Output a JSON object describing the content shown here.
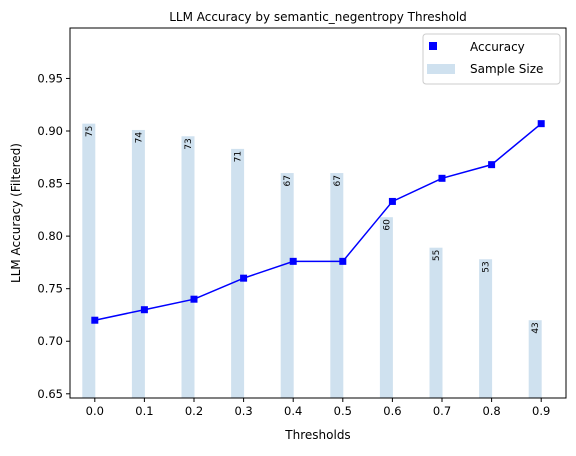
{
  "chart_data": {
    "type": "line",
    "title": "LLM Accuracy by semantic_negentropy Threshold",
    "xlabel": "Thresholds",
    "ylabel": "LLM Accuracy (Filtered)",
    "ylim": [
      0.646,
      0.998
    ],
    "xlim": [
      -0.05,
      0.95
    ],
    "x_ticks": [
      "0.0",
      "0.1",
      "0.2",
      "0.3",
      "0.4",
      "0.5",
      "0.6",
      "0.7",
      "0.8",
      "0.9"
    ],
    "y_ticks": [
      "0.65",
      "0.70",
      "0.75",
      "0.80",
      "0.85",
      "0.90",
      "0.95"
    ],
    "grid": false,
    "legend_position": "top-right",
    "series": [
      {
        "name": "Accuracy",
        "kind": "line",
        "marker": "square",
        "color": "#0000ff",
        "x": [
          0.0,
          0.1,
          0.2,
          0.3,
          0.4,
          0.5,
          0.6,
          0.7,
          0.8,
          0.9
        ],
        "values": [
          0.72,
          0.73,
          0.74,
          0.76,
          0.776,
          0.776,
          0.833,
          0.855,
          0.868,
          0.907
        ]
      },
      {
        "name": "Sample Size",
        "kind": "bar",
        "color": "#cfe1ef",
        "x": [
          0.0,
          0.1,
          0.2,
          0.3,
          0.4,
          0.5,
          0.6,
          0.7,
          0.8,
          0.9
        ],
        "values": [
          75,
          74,
          73,
          71,
          67,
          67,
          60,
          55,
          53,
          43
        ],
        "bar_top_y": [
          0.907,
          0.901,
          0.895,
          0.883,
          0.86,
          0.86,
          0.818,
          0.789,
          0.778,
          0.72
        ],
        "labels": [
          "75",
          "74",
          "73",
          "71",
          "67",
          "67",
          "60",
          "55",
          "53",
          "43"
        ]
      }
    ]
  }
}
